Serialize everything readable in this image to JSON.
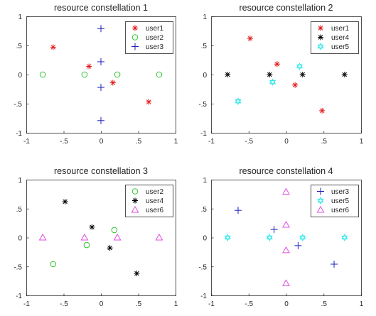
{
  "colors": {
    "user1": "#e41a1c",
    "user2": "#2ec52e",
    "user3": "#1f1fbf",
    "user4": "#000000",
    "user5": "#2ee8e8",
    "user6": "#e050e0",
    "axis": "#262626"
  },
  "chart_data": [
    {
      "type": "scatter",
      "title": "resource constellation 1",
      "xlim": [
        -1,
        1
      ],
      "ylim": [
        -1,
        1
      ],
      "xticks": [
        -1,
        -0.5,
        0,
        0.5,
        1
      ],
      "yticks": [
        -1,
        -0.5,
        0,
        0.5,
        1
      ],
      "grid": false,
      "legend_position": "top-right",
      "series": [
        {
          "name": "user1",
          "marker": "star",
          "color": "#e41a1c",
          "points": [
            [
              -0.64,
              0.47
            ],
            [
              -0.16,
              0.14
            ],
            [
              0.16,
              -0.14
            ],
            [
              0.64,
              -0.47
            ]
          ]
        },
        {
          "name": "user2",
          "marker": "circle",
          "color": "#2ec52e",
          "points": [
            [
              -0.78,
              0.0
            ],
            [
              -0.22,
              0.0
            ],
            [
              0.22,
              0.0
            ],
            [
              0.78,
              0.0
            ]
          ]
        },
        {
          "name": "user3",
          "marker": "plus",
          "color": "#1f1fbf",
          "points": [
            [
              0.0,
              0.79
            ],
            [
              0.0,
              0.22
            ],
            [
              0.0,
              -0.22
            ],
            [
              0.0,
              -0.79
            ]
          ]
        }
      ]
    },
    {
      "type": "scatter",
      "title": "resource constellation 2",
      "xlim": [
        -1,
        1
      ],
      "ylim": [
        -1,
        1
      ],
      "xticks": [
        -1,
        -0.5,
        0,
        0.5,
        1
      ],
      "yticks": [
        -1,
        -0.5,
        0,
        0.5,
        1
      ],
      "grid": false,
      "legend_position": "top-right",
      "series": [
        {
          "name": "user1",
          "marker": "star",
          "color": "#e41a1c",
          "points": [
            [
              -0.48,
              0.62
            ],
            [
              -0.12,
              0.18
            ],
            [
              0.12,
              -0.18
            ],
            [
              0.48,
              -0.62
            ]
          ]
        },
        {
          "name": "user4",
          "marker": "star",
          "color": "#000000",
          "points": [
            [
              -0.78,
              0.0
            ],
            [
              -0.22,
              0.0
            ],
            [
              0.22,
              0.0
            ],
            [
              0.78,
              0.0
            ]
          ]
        },
        {
          "name": "user5",
          "marker": "hexagram",
          "color": "#2ee8e8",
          "points": [
            [
              -0.64,
              -0.46
            ],
            [
              -0.18,
              -0.13
            ],
            [
              0.18,
              0.14
            ]
          ]
        }
      ]
    },
    {
      "type": "scatter",
      "title": "resource constellation 3",
      "xlim": [
        -1,
        1
      ],
      "ylim": [
        -1,
        1
      ],
      "xticks": [
        -1,
        -0.5,
        0,
        0.5,
        1
      ],
      "yticks": [
        -1,
        -0.5,
        0,
        0.5,
        1
      ],
      "grid": false,
      "legend_position": "top-right",
      "series": [
        {
          "name": "user2",
          "marker": "circle",
          "color": "#2ec52e",
          "points": [
            [
              -0.64,
              -0.46
            ],
            [
              -0.19,
              -0.13
            ],
            [
              0.18,
              0.13
            ]
          ]
        },
        {
          "name": "user4",
          "marker": "star",
          "color": "#000000",
          "points": [
            [
              -0.48,
              0.62
            ],
            [
              -0.12,
              0.18
            ],
            [
              0.12,
              -0.18
            ],
            [
              0.48,
              -0.62
            ]
          ]
        },
        {
          "name": "user6",
          "marker": "triangle",
          "color": "#e050e0",
          "points": [
            [
              -0.78,
              0.0
            ],
            [
              -0.22,
              0.0
            ],
            [
              0.22,
              0.0
            ],
            [
              0.78,
              0.0
            ]
          ]
        }
      ]
    },
    {
      "type": "scatter",
      "title": "resource constellation 4",
      "xlim": [
        -1,
        1
      ],
      "ylim": [
        -1,
        1
      ],
      "xticks": [
        -1,
        -0.5,
        0,
        0.5,
        1
      ],
      "yticks": [
        -1,
        -0.5,
        0,
        0.5,
        1
      ],
      "grid": false,
      "legend_position": "top-right",
      "series": [
        {
          "name": "user3",
          "marker": "plus",
          "color": "#1f1fbf",
          "points": [
            [
              -0.64,
              0.47
            ],
            [
              -0.16,
              0.14
            ],
            [
              0.16,
              -0.14
            ],
            [
              0.64,
              -0.46
            ]
          ]
        },
        {
          "name": "user5",
          "marker": "hexagram",
          "color": "#2ee8e8",
          "points": [
            [
              -0.78,
              0.0
            ],
            [
              -0.22,
              0.0
            ],
            [
              0.22,
              0.0
            ],
            [
              0.78,
              0.0
            ]
          ]
        },
        {
          "name": "user6",
          "marker": "triangle",
          "color": "#e050e0",
          "points": [
            [
              0.0,
              0.79
            ],
            [
              0.0,
              0.22
            ],
            [
              0.0,
              -0.22
            ],
            [
              0.0,
              -0.79
            ]
          ]
        }
      ]
    }
  ]
}
